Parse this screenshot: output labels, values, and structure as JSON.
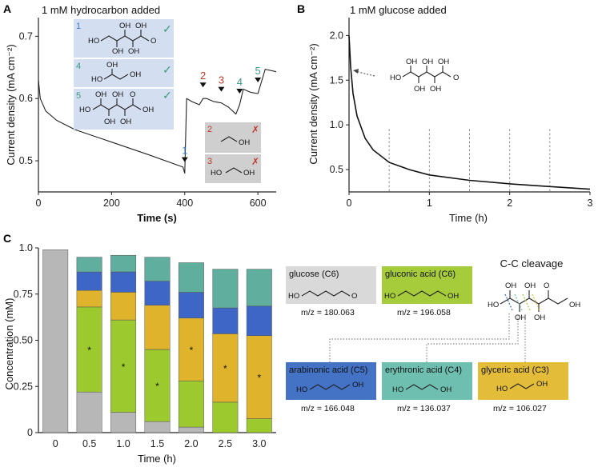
{
  "panels": {
    "A": {
      "label": "A",
      "title": "1 mM hydrocarbon added",
      "xlabel": "Time (s)",
      "ylabel": "Current density (mA cm⁻²)",
      "xticks": [
        "0",
        "200",
        "400",
        "600"
      ],
      "yticks": [
        "0.5",
        "0.6",
        "0.7"
      ],
      "box_numbers": [
        "1",
        "4",
        "5",
        "2",
        "3"
      ],
      "checks": [
        "✓",
        "✓",
        "✓"
      ],
      "crosses": [
        "✗",
        "✗"
      ],
      "arrow_numbers": [
        "1",
        "2",
        "3",
        "4",
        "5"
      ],
      "atom_labels": {
        "oh": "OH",
        "ho": "HO",
        "o": "O"
      }
    },
    "B": {
      "label": "B",
      "title": "1 mM glucose added",
      "xlabel": "Time (h)",
      "ylabel": "Current density (mA cm⁻²)",
      "xticks": [
        "0",
        "1",
        "2",
        "3"
      ],
      "yticks": [
        "0.5",
        "1.0",
        "1.5",
        "2.0"
      ]
    },
    "C": {
      "label": "C",
      "xlabel": "Time (h)",
      "ylabel": "Concentration (mM)",
      "xticks": [
        "0",
        "0.5",
        "1.0",
        "1.5",
        "2.0",
        "2.5",
        "3.0"
      ],
      "yticks": [
        "0",
        "0.25",
        "0.50",
        "0.75",
        "1.0"
      ],
      "star": "*",
      "cc_title": "C-C cleavage",
      "boxes": [
        {
          "name": "glucose (C6)",
          "mz": "m/z = 180.063",
          "color": "#d9d9d9"
        },
        {
          "name": "gluconic acid (C6)",
          "mz": "m/z = 196.058",
          "color": "#a6cc3c"
        },
        {
          "name": "arabinonic acid (C5)",
          "mz": "m/z = 166.048",
          "color": "#4472c4"
        },
        {
          "name": "erythronic acid (C4)",
          "mz": "m/z = 136.037",
          "color": "#6fbfb1"
        },
        {
          "name": "glyceric acid (C3)",
          "mz": "m/z = 106.027",
          "color": "#e3bc3a"
        }
      ]
    }
  },
  "colors": {
    "axis": "#222222",
    "greenCheck": "#3a9a7a",
    "num1": "#3a7fc4",
    "num4": "#3a9a85",
    "redNum": "#c0392b",
    "blueBox": "#d3def0",
    "greyBox": "#cfcfcf"
  },
  "chart_data": [
    {
      "type": "line",
      "title": "1 mM hydrocarbon added",
      "xlabel": "Time (s)",
      "ylabel": "Current density (mA cm⁻²)",
      "xlim": [
        0,
        650
      ],
      "ylim": [
        0.45,
        0.73
      ],
      "x": [
        0,
        5,
        20,
        50,
        100,
        200,
        300,
        395,
        400,
        405,
        420,
        440,
        450,
        460,
        480,
        500,
        520,
        540,
        550,
        560,
        580,
        600,
        620,
        650
      ],
      "y": [
        0.63,
        0.6,
        0.58,
        0.565,
        0.55,
        0.53,
        0.51,
        0.49,
        0.48,
        0.6,
        0.595,
        0.59,
        0.6,
        0.6,
        0.595,
        0.593,
        0.586,
        0.575,
        0.59,
        0.615,
        0.61,
        0.608,
        0.647,
        0.643
      ],
      "addition_times": [
        400,
        450,
        500,
        550,
        600
      ],
      "addition_labels": [
        "1",
        "2",
        "3",
        "4",
        "5"
      ]
    },
    {
      "type": "line",
      "title": "1 mM glucose added",
      "xlabel": "Time (h)",
      "ylabel": "Current density (mA cm⁻²)",
      "xlim": [
        0,
        3
      ],
      "ylim": [
        0.25,
        2.2
      ],
      "x": [
        0,
        0.02,
        0.05,
        0.1,
        0.2,
        0.3,
        0.5,
        0.75,
        1.0,
        1.5,
        2.0,
        2.5,
        3.0
      ],
      "y": [
        2.0,
        1.65,
        1.35,
        1.1,
        0.85,
        0.72,
        0.58,
        0.5,
        0.44,
        0.38,
        0.34,
        0.31,
        0.28
      ],
      "dashed_markers": [
        0.5,
        1.0,
        1.5,
        2.0,
        2.5
      ]
    },
    {
      "type": "bar",
      "stacked": true,
      "xlabel": "Time (h)",
      "ylabel": "Concentration (mM)",
      "ylim": [
        0,
        1.0
      ],
      "categories": [
        "0",
        "0.5",
        "1.0",
        "1.5",
        "2.0",
        "2.5",
        "3.0"
      ],
      "series": [
        {
          "name": "glucose (C6)",
          "color": "#b7b7b7",
          "values": [
            0.99,
            0.22,
            0.11,
            0.06,
            0.03,
            0.0,
            0.0
          ]
        },
        {
          "name": "gluconic acid (C6)",
          "color": "#9bc92e",
          "values": [
            0.0,
            0.46,
            0.5,
            0.39,
            0.25,
            0.165,
            0.075
          ]
        },
        {
          "name": "glyceric acid (C3)",
          "color": "#e0b32c",
          "values": [
            0.0,
            0.09,
            0.15,
            0.24,
            0.34,
            0.37,
            0.45
          ]
        },
        {
          "name": "arabinonic acid (C5)",
          "color": "#3d66c6",
          "values": [
            0.0,
            0.1,
            0.11,
            0.13,
            0.14,
            0.14,
            0.16
          ]
        },
        {
          "name": "erythronic acid (C4)",
          "color": "#5fae9e",
          "values": [
            0.0,
            0.08,
            0.09,
            0.13,
            0.16,
            0.21,
            0.2
          ]
        }
      ],
      "star_series": [
        "gluconic acid (C6)",
        "gluconic acid (C6)",
        "gluconic acid (C6)",
        "glyceric acid (C3)",
        "glyceric acid (C3)",
        "glyceric acid (C3)"
      ]
    }
  ]
}
